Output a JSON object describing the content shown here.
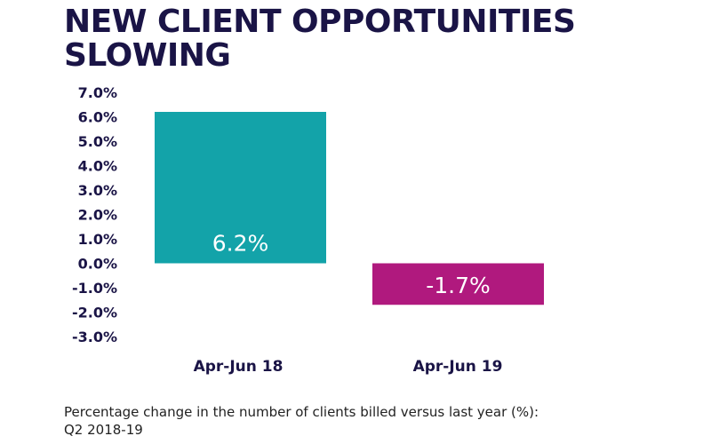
{
  "title_lines": [
    "NEW CLIENT OPPORTUNITIES",
    "SLOWING"
  ],
  "caption_lines": [
    "Percentage change in the number of clients billed versus last year (%):",
    "Q2 2018-19"
  ],
  "chart_data": {
    "type": "bar",
    "categories": [
      "Apr-Jun 18",
      "Apr-Jun 19"
    ],
    "values": [
      6.2,
      -1.7
    ],
    "data_labels": [
      "6.2%",
      "-1.7%"
    ],
    "colors": [
      "#13a3a9",
      "#b0197e"
    ],
    "yticks": [
      "7.0%",
      "6.0%",
      "5.0%",
      "4.0%",
      "3.0%",
      "2.0%",
      "1.0%",
      "0.0%",
      "-1.0%",
      "-2.0%",
      "-3.0%"
    ],
    "ylim": [
      -3,
      7
    ],
    "grid": false,
    "legend": "none",
    "title": "",
    "xlabel": "",
    "ylabel": ""
  },
  "colors": {
    "title": "#1a1446",
    "tick_text": "#1a1446",
    "label_text": "#ffffff"
  }
}
